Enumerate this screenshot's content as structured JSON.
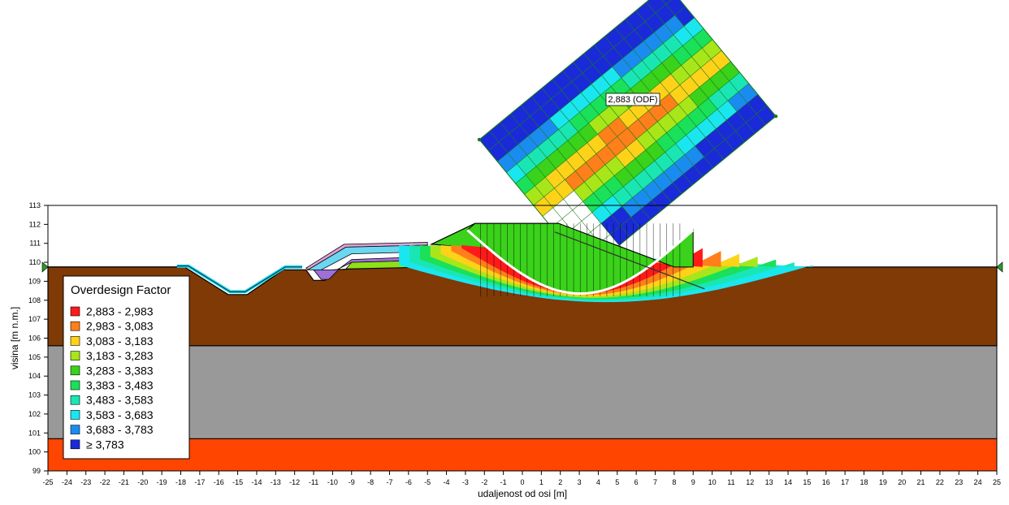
{
  "chart_data": {
    "type": "slope-stability-section",
    "xlabel": "udaljenost od osi [m]",
    "ylabel": "visina [m n.m.]",
    "xlim": [
      -25,
      25
    ],
    "ylim": [
      99,
      113
    ],
    "x_ticks": [
      -25,
      -24,
      -23,
      -22,
      -21,
      -20,
      -19,
      -18,
      -17,
      -16,
      -15,
      -14,
      -13,
      -12,
      -11,
      -10,
      -9,
      -8,
      -7,
      -6,
      -5,
      -4,
      -3,
      -2,
      -1,
      0,
      1,
      2,
      3,
      4,
      5,
      6,
      7,
      8,
      9,
      10,
      11,
      12,
      13,
      14,
      15,
      16,
      17,
      18,
      19,
      20,
      21,
      22,
      23,
      24,
      25
    ],
    "y_ticks": [
      99,
      100,
      101,
      102,
      103,
      104,
      105,
      106,
      107,
      108,
      109,
      110,
      111,
      112,
      113
    ],
    "legend": {
      "title": "Overdesign Factor",
      "entries": [
        {
          "label": "2,883 - 2,983",
          "color": "#ff1a1a"
        },
        {
          "label": "2,983 - 3,083",
          "color": "#ff7f1a"
        },
        {
          "label": "3,083 - 3,183",
          "color": "#ffd21a"
        },
        {
          "label": "3,183 - 3,283",
          "color": "#a8e61a"
        },
        {
          "label": "3,283 - 3,383",
          "color": "#3ad21a"
        },
        {
          "label": "3,383 - 3,483",
          "color": "#1ae05a"
        },
        {
          "label": "3,483 - 3,583",
          "color": "#1ae6b4"
        },
        {
          "label": "3,583 - 3,683",
          "color": "#1ae6f0"
        },
        {
          "label": "3,683 - 3,783",
          "color": "#1a8cf0"
        },
        {
          "label": "≥ 3,783",
          "color": "#1a2ad8"
        }
      ]
    },
    "layers": [
      {
        "name": "orange-base",
        "top": 100.7,
        "bottom": 99,
        "color": "#ff4500"
      },
      {
        "name": "gray-layer",
        "top": 105.6,
        "bottom": 100.7,
        "color": "#999999"
      },
      {
        "name": "brown-soil",
        "top": 109.6,
        "bottom": 105.6,
        "color": "#7f3a05"
      }
    ],
    "annotation": "2,883 (ODF)",
    "critical_odf": 2.883
  }
}
